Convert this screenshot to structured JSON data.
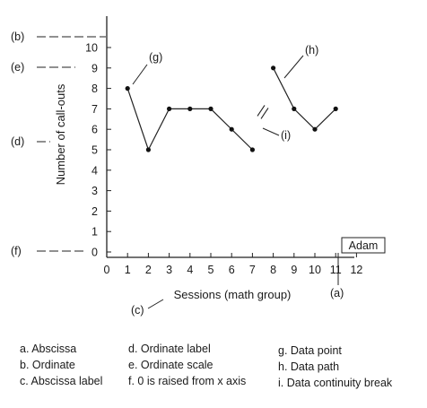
{
  "chart_data": {
    "type": "line",
    "participant_label": "Adam",
    "ylabel": "Number of call-outs",
    "xlabel": "Sessions (math group)",
    "x_ticks": [
      "0",
      "1",
      "2",
      "3",
      "4",
      "5",
      "6",
      "7",
      "8",
      "9",
      "10",
      "11",
      "12"
    ],
    "y_ticks": [
      "0",
      "1",
      "2",
      "3",
      "4",
      "5",
      "6",
      "7",
      "8",
      "9",
      "10"
    ],
    "ylim": [
      0,
      10
    ],
    "xlim": [
      0,
      12
    ],
    "segments": [
      {
        "x": [
          1,
          2,
          3,
          4,
          5,
          6,
          7
        ],
        "y": [
          8,
          5,
          7,
          7,
          7,
          6,
          5
        ]
      },
      {
        "x": [
          8,
          9,
          10,
          11
        ],
        "y": [
          9,
          7,
          6,
          7
        ]
      }
    ],
    "continuity_break_between_sessions": [
      7,
      8
    ],
    "callout_tags": {
      "b": "(b)",
      "e": "(e)",
      "d": "(d)",
      "f": "(f)",
      "g": "(g)",
      "h": "(h)",
      "i": "(i)",
      "c": "(c)",
      "a": "(a)"
    }
  },
  "legend_key": {
    "col1": [
      "a. Abscissa",
      "b. Ordinate",
      "c. Abscissa label"
    ],
    "col2": [
      "d. Ordinate label",
      "e. Ordinate scale",
      "f. 0 is raised from x axis"
    ],
    "col3": [
      "g. Data point",
      "h. Data path",
      "i. Data continuity break"
    ]
  }
}
